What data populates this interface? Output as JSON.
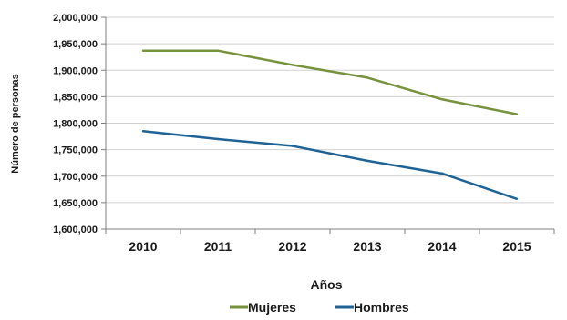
{
  "chart_data": {
    "type": "line",
    "categories": [
      "2010",
      "2011",
      "2012",
      "2013",
      "2014",
      "2015"
    ],
    "series": [
      {
        "name": "Mujeres",
        "color": "#76923c",
        "values": [
          1937000,
          1937000,
          1910000,
          1886000,
          1845000,
          1817000
        ]
      },
      {
        "name": "Hombres",
        "color": "#1f6396",
        "values": [
          1785000,
          1770000,
          1757000,
          1729000,
          1705000,
          1657000
        ]
      }
    ],
    "xlabel": "Años",
    "ylabel": "Número de personas",
    "ylim": [
      1600000,
      2000000
    ],
    "yticks": [
      "1,600,000",
      "1,650,000",
      "1,700,000",
      "1,750,000",
      "1,800,000",
      "1,850,000",
      "1,900,000",
      "1,950,000",
      "2,000,000"
    ],
    "ytick_values": [
      1600000,
      1650000,
      1700000,
      1750000,
      1800000,
      1850000,
      1900000,
      1950000,
      2000000
    ],
    "grid": true,
    "legend": "bottom"
  }
}
